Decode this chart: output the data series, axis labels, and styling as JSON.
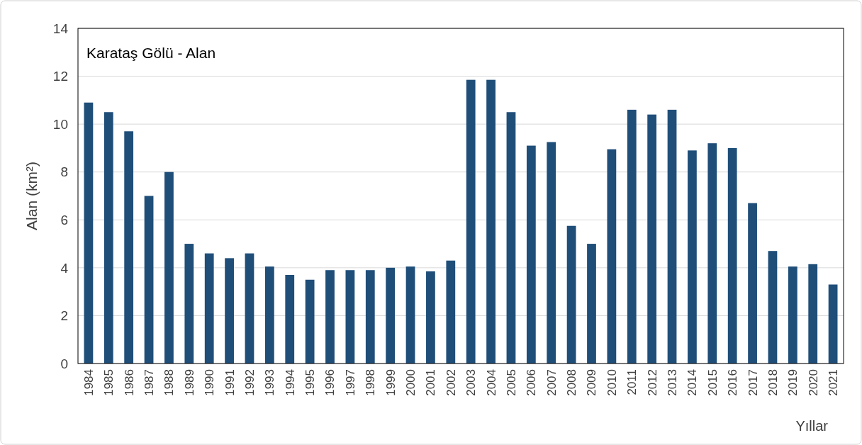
{
  "chart_data": {
    "type": "bar",
    "title": "Karataş Gölü - Alan",
    "xlabel": "Yıllar",
    "ylabel": "Alan (km²)",
    "categories": [
      "1984",
      "1985",
      "1986",
      "1987",
      "1988",
      "1989",
      "1990",
      "1991",
      "1992",
      "1993",
      "1994",
      "1995",
      "1996",
      "1997",
      "1998",
      "1999",
      "2000",
      "2001",
      "2002",
      "2003",
      "2004",
      "2005",
      "2006",
      "2007",
      "2008",
      "2009",
      "2010",
      "2011",
      "2012",
      "2013",
      "2014",
      "2015",
      "2016",
      "2017",
      "2018",
      "2019",
      "2020",
      "2021"
    ],
    "values": [
      10.9,
      10.5,
      9.7,
      7.0,
      8.0,
      5.0,
      4.6,
      4.4,
      4.6,
      4.05,
      3.7,
      3.5,
      3.9,
      3.9,
      3.9,
      4.0,
      4.05,
      3.85,
      4.3,
      11.85,
      11.85,
      10.5,
      9.1,
      9.25,
      5.75,
      5.0,
      8.95,
      10.6,
      10.4,
      10.6,
      8.9,
      9.2,
      9.0,
      6.7,
      4.7,
      4.05,
      4.15,
      3.3
    ],
    "color": "#1f4e79",
    "ylim": [
      0,
      14
    ],
    "yticks": [
      0,
      2,
      4,
      6,
      8,
      10,
      12,
      14
    ],
    "grid": "y"
  }
}
